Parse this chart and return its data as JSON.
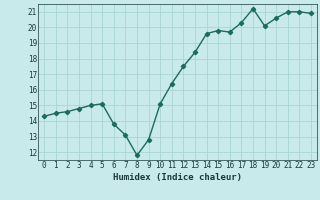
{
  "x": [
    0,
    1,
    2,
    3,
    4,
    5,
    6,
    7,
    8,
    9,
    10,
    11,
    12,
    13,
    14,
    15,
    16,
    17,
    18,
    19,
    20,
    21,
    22,
    23
  ],
  "y": [
    14.3,
    14.5,
    14.6,
    14.8,
    15.0,
    15.1,
    13.8,
    13.1,
    11.8,
    12.8,
    15.1,
    16.4,
    17.5,
    18.4,
    19.6,
    19.8,
    19.7,
    20.3,
    21.2,
    20.1,
    20.6,
    21.0,
    21.0,
    20.9
  ],
  "xlabel": "Humidex (Indice chaleur)",
  "xlim": [
    -0.5,
    23.5
  ],
  "ylim": [
    11.5,
    21.5
  ],
  "yticks": [
    12,
    13,
    14,
    15,
    16,
    17,
    18,
    19,
    20,
    21
  ],
  "xticks": [
    0,
    1,
    2,
    3,
    4,
    5,
    6,
    7,
    8,
    9,
    10,
    11,
    12,
    13,
    14,
    15,
    16,
    17,
    18,
    19,
    20,
    21,
    22,
    23
  ],
  "line_color": "#1d6b5a",
  "marker": "D",
  "marker_size": 2.2,
  "bg_color": "#c8eaea",
  "grid_color": "#aad4d4",
  "tick_label_color": "#1a3a3a",
  "xlabel_color": "#1a3a3a",
  "line_width": 1.0,
  "tick_fontsize": 5.5,
  "xlabel_fontsize": 6.5
}
